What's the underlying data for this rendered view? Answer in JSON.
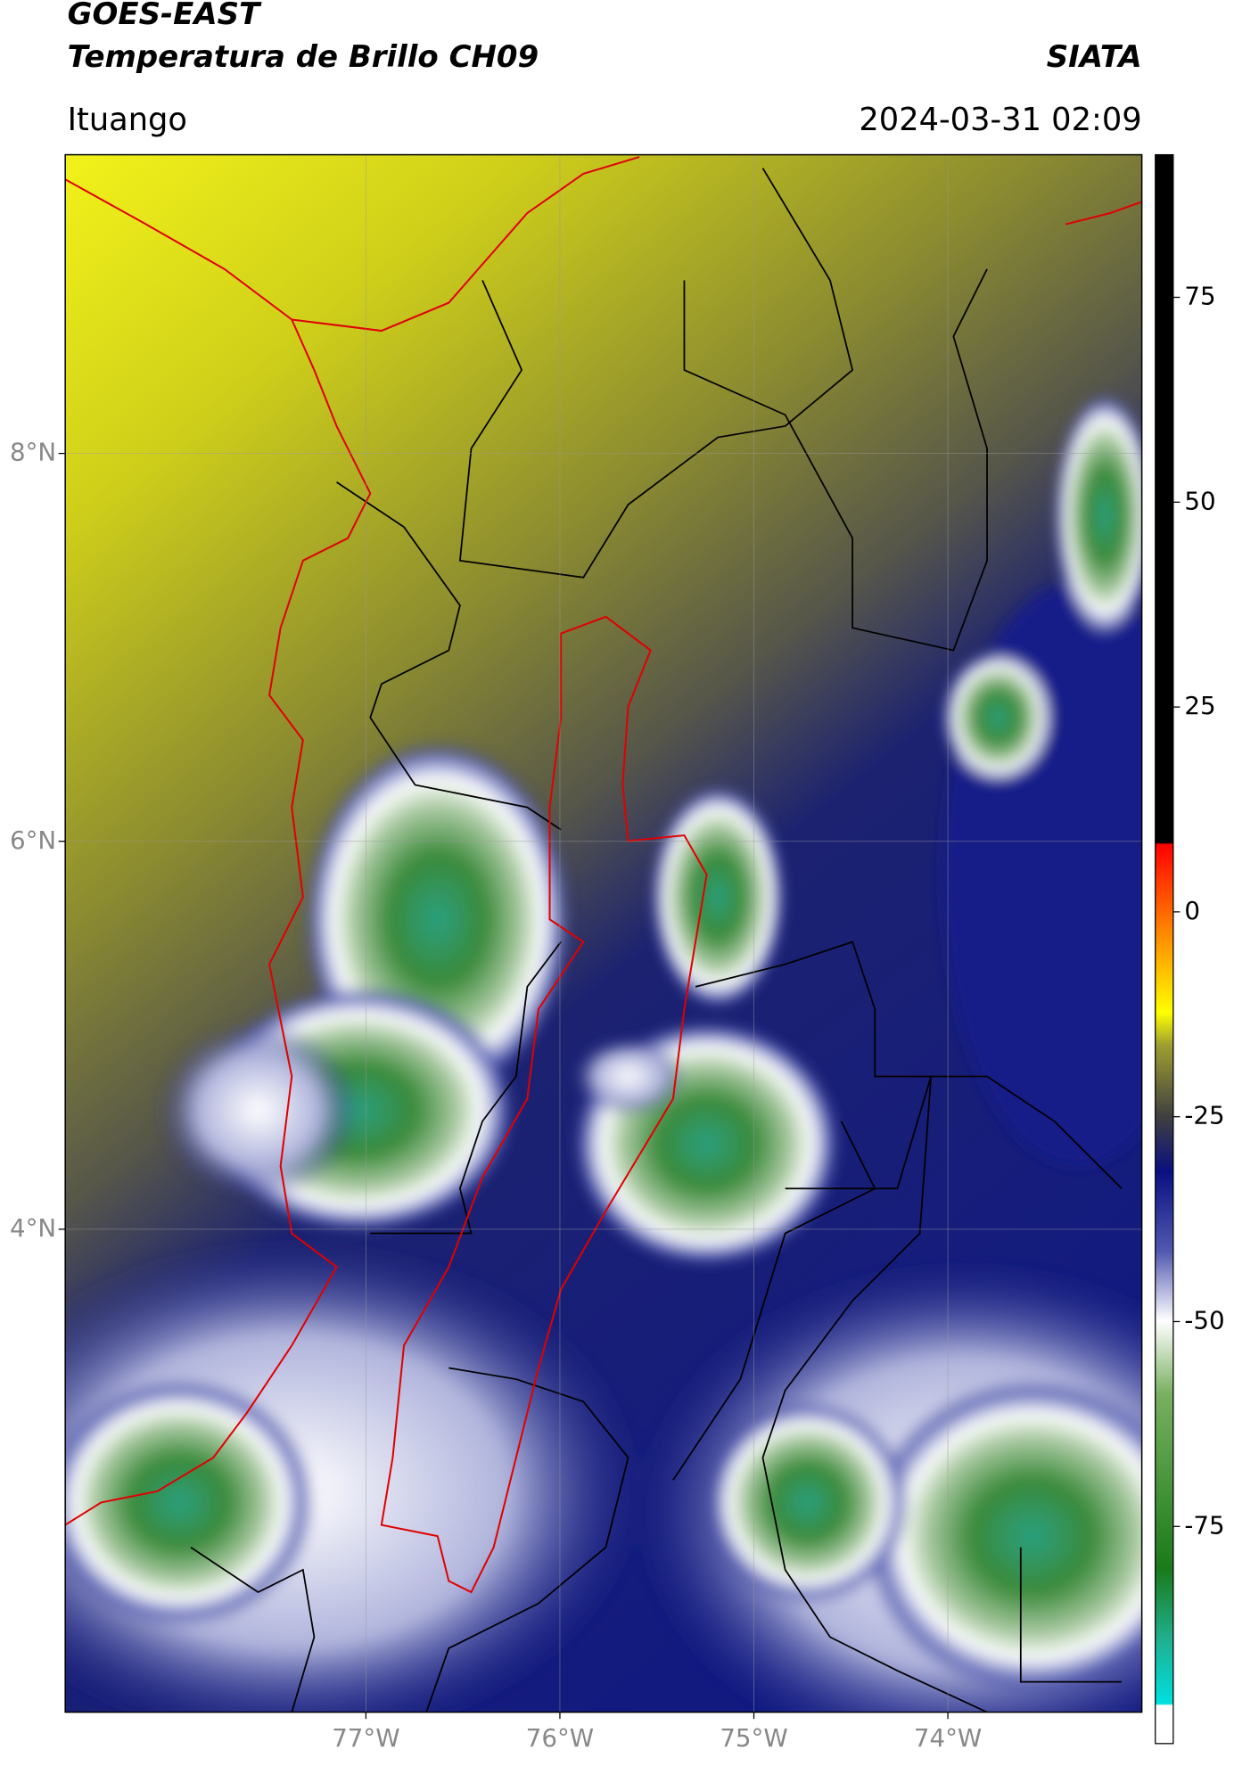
{
  "header": {
    "title": "GOES-EAST",
    "subtitle": "Temperatura de Brillo CH09",
    "source": "SIATA",
    "location": "Ituango",
    "datetime": "2024-03-31 02:09"
  },
  "map": {
    "xlim": [
      -78.55,
      -73.0
    ],
    "ylim": [
      1.51,
      9.54
    ],
    "xticks": [
      {
        "value": -77,
        "label": "77°W"
      },
      {
        "value": -76,
        "label": "76°W"
      },
      {
        "value": -75,
        "label": "75°W"
      },
      {
        "value": -74,
        "label": "74°W"
      }
    ],
    "yticks": [
      {
        "value": 8,
        "label": "8°N"
      },
      {
        "value": 6,
        "label": "6°N"
      },
      {
        "value": 4,
        "label": "4°N"
      }
    ],
    "grid": true
  },
  "colorbar": {
    "lim": [
      -101.5,
      92.4
    ],
    "ticks": [
      75,
      50,
      25,
      0,
      -25,
      -50,
      -75
    ]
  }
}
